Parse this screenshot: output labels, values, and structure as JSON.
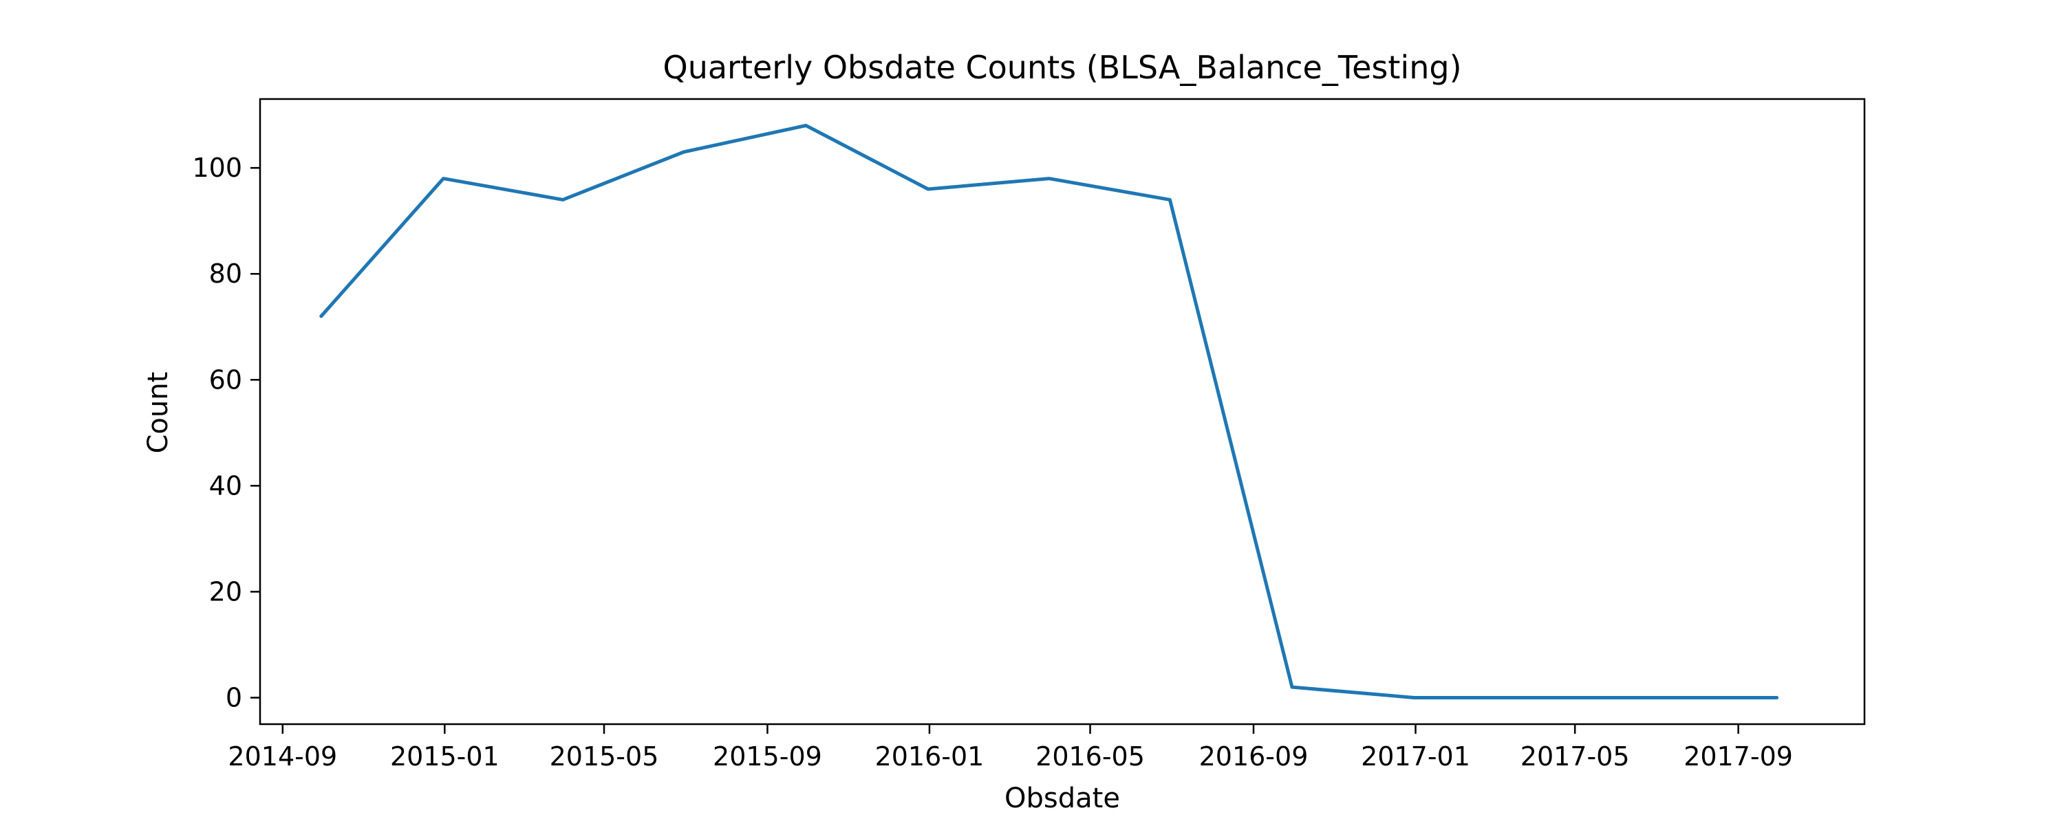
{
  "chart_data": {
    "type": "line",
    "title": "Quarterly Obsdate Counts (BLSA_Balance_Testing)",
    "xlabel": "Obsdate",
    "ylabel": "Count",
    "x_ticks": [
      "2014-09",
      "2015-01",
      "2015-05",
      "2015-09",
      "2016-01",
      "2016-05",
      "2016-09",
      "2017-01",
      "2017-05",
      "2017-09"
    ],
    "y_ticks": [
      0,
      20,
      40,
      60,
      80,
      100
    ],
    "ylim": [
      -5,
      113
    ],
    "xlim": [
      "2014-08-15",
      "2017-12-05"
    ],
    "grid": false,
    "series": [
      {
        "color": "#1f77b4",
        "x": [
          "2014-09-30",
          "2014-12-31",
          "2015-03-31",
          "2015-06-30",
          "2015-09-30",
          "2015-12-31",
          "2016-03-31",
          "2016-06-30",
          "2016-09-30",
          "2016-12-31",
          "2017-03-31",
          "2017-06-30",
          "2017-09-30"
        ],
        "values": [
          72,
          98,
          94,
          103,
          108,
          96,
          98,
          94,
          2,
          0,
          0,
          0,
          0
        ]
      }
    ]
  }
}
